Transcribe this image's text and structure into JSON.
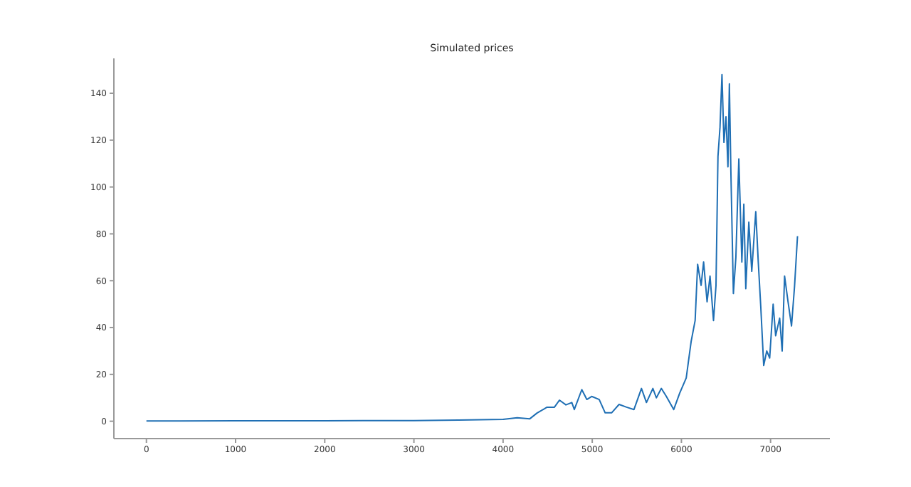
{
  "chart_data": {
    "type": "line",
    "title": "Simulated prices",
    "xlim": [
      -365,
      7665
    ],
    "ylim": [
      -7.4,
      154.9
    ],
    "xticks": [
      0,
      1000,
      2000,
      3000,
      4000,
      5000,
      6000,
      7000
    ],
    "yticks": [
      0,
      20,
      40,
      60,
      80,
      100,
      120,
      140
    ],
    "grid": false,
    "legend": false,
    "marker": "none",
    "line_style": "solid",
    "series": [
      {
        "color": "#1f6fb4",
        "x": [
          0,
          1000,
          2000,
          3000,
          3500,
          4000,
          4158,
          4298,
          4381,
          4493,
          4576,
          4632,
          4705,
          4771,
          4799,
          4883,
          4939,
          4994,
          5078,
          5145,
          5217,
          5301,
          5385,
          5468,
          5552,
          5608,
          5680,
          5719,
          5775,
          5831,
          5914,
          5981,
          6054,
          6109,
          6154,
          6182,
          6221,
          6249,
          6288,
          6321,
          6360,
          6388,
          6410,
          6433,
          6455,
          6477,
          6500,
          6522,
          6538,
          6555,
          6583,
          6611,
          6644,
          6678,
          6700,
          6722,
          6756,
          6789,
          6834,
          6862,
          6890,
          6923,
          6957,
          6990,
          7029,
          7057,
          7102,
          7130,
          7157,
          7196,
          7235,
          7269,
          7302
        ],
        "values": [
          0.1,
          0.2,
          0.2,
          0.3,
          0.5,
          0.8,
          1.5,
          1,
          3.5,
          6,
          6,
          9,
          7,
          8,
          5,
          13.5,
          9.3,
          10.6,
          9.3,
          3.6,
          3.6,
          7.2,
          6,
          5,
          14,
          8,
          14,
          10,
          14,
          10.6,
          5,
          12,
          18.5,
          34,
          43,
          67,
          58,
          68,
          51,
          62,
          43,
          58,
          113,
          125.6,
          148,
          119,
          130,
          108.6,
          144,
          106.5,
          54.5,
          70,
          112,
          68,
          92.7,
          56.6,
          85,
          64,
          89.5,
          68,
          49,
          23.8,
          30,
          27,
          50,
          36.5,
          44,
          30,
          62,
          51,
          40.7,
          57.7,
          79
        ]
      }
    ]
  }
}
